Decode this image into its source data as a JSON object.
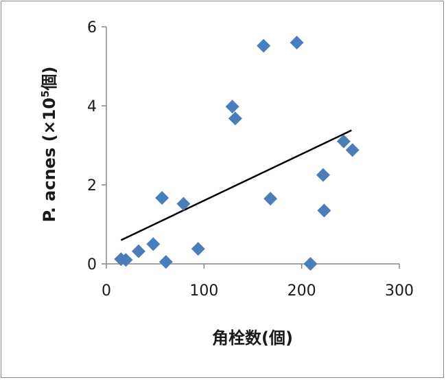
{
  "chart_data": {
    "type": "scatter",
    "title": "",
    "xlabel": "角栓数(個)",
    "ylabel_main": "P. acnes (×10",
    "ylabel_sup": "5",
    "ylabel_tail": "個)",
    "xlim": [
      0,
      300
    ],
    "ylim": [
      0,
      6
    ],
    "x_ticks": [
      0,
      100,
      200,
      300
    ],
    "y_ticks": [
      0,
      2,
      4,
      6
    ],
    "x_tick_labels": [
      "0",
      "100",
      "200",
      "300"
    ],
    "y_tick_labels": [
      "0",
      "2",
      "4",
      "6"
    ],
    "grid": false,
    "legend": "none",
    "marker": "diamond",
    "marker_color": "#4a7ebb",
    "trendline_color": "#000000",
    "points": [
      {
        "x": 15,
        "y": 0.12
      },
      {
        "x": 20,
        "y": 0.1
      },
      {
        "x": 33,
        "y": 0.32
      },
      {
        "x": 48,
        "y": 0.5
      },
      {
        "x": 57,
        "y": 1.67
      },
      {
        "x": 61,
        "y": 0.05
      },
      {
        "x": 79,
        "y": 1.52
      },
      {
        "x": 94,
        "y": 0.38
      },
      {
        "x": 129,
        "y": 3.98
      },
      {
        "x": 132,
        "y": 3.68
      },
      {
        "x": 161,
        "y": 5.52
      },
      {
        "x": 168,
        "y": 1.65
      },
      {
        "x": 195,
        "y": 5.6
      },
      {
        "x": 209,
        "y": 0.0
      },
      {
        "x": 222,
        "y": 2.25
      },
      {
        "x": 223,
        "y": 1.35
      },
      {
        "x": 243,
        "y": 3.1
      },
      {
        "x": 252,
        "y": 2.88
      }
    ],
    "trendline": {
      "x": [
        15,
        251
      ],
      "y": [
        0.6,
        3.38
      ]
    }
  }
}
